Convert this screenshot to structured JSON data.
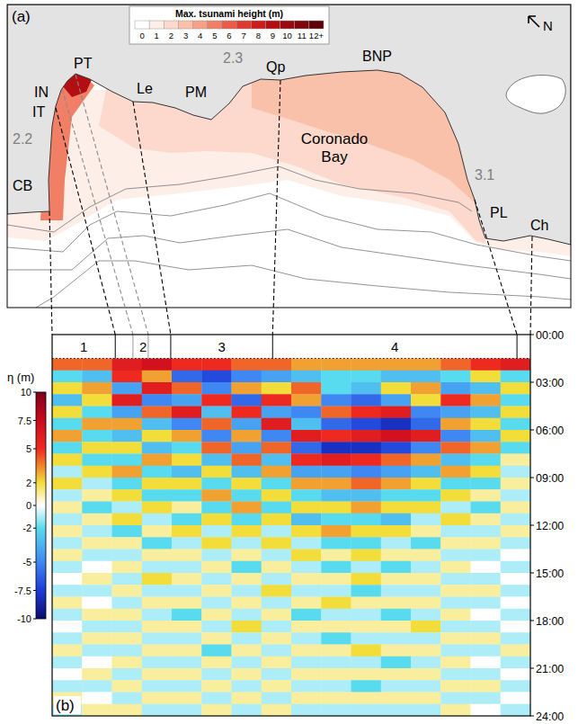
{
  "chart_data": [
    {
      "type": "map",
      "panel_label": "(a)",
      "north_label": "N",
      "colorbar": {
        "title": "Max. tsunami height (m)",
        "ticks": [
          0,
          1,
          2,
          3,
          4,
          5,
          6,
          7,
          8,
          9,
          10,
          11,
          {
            "value": 12,
            "label": "12+"
          }
        ],
        "colors": [
          "#ffffff",
          "#fdeee8",
          "#fcd9cc",
          "#f9c0aa",
          "#f6a088",
          "#f07f66",
          "#e95c48",
          "#de3a30",
          "#cc1c1e",
          "#b30e14",
          "#980a10",
          "#7e060c",
          "#5e0208"
        ]
      },
      "zones": [
        {
          "max_height": 1.5
        },
        {
          "max_height": 2.5
        },
        {
          "max_height": 3.5
        },
        {
          "max_height": 5
        },
        {
          "max_height": 9
        }
      ],
      "places": [
        {
          "label": "CB"
        },
        {
          "label": "IT"
        },
        {
          "label": "IN"
        },
        {
          "label": "PT"
        },
        {
          "label": "Le"
        },
        {
          "label": "PM"
        },
        {
          "label": "Qp"
        },
        {
          "label": "BNP"
        },
        {
          "label": "PL"
        },
        {
          "label": "Ch"
        },
        {
          "label": "2.2",
          "color": "#808080"
        },
        {
          "label": "2.3",
          "color": "#808080"
        },
        {
          "label": "3.1",
          "color": "#808080"
        },
        {
          "label": "Coronado Bay"
        }
      ]
    },
    {
      "type": "heatmap",
      "panel_label": "(b)",
      "tick_labels": "y",
      "xlim": [
        0,
        100
      ],
      "ylim": [
        0,
        24
      ],
      "yticks": [
        {
          "value": 0,
          "label": "00:00"
        },
        {
          "value": 3,
          "label": "03:00"
        },
        {
          "value": 6,
          "label": "06:00"
        },
        {
          "value": 9,
          "label": "09:00"
        },
        {
          "value": 12,
          "label": "12:00"
        },
        {
          "value": 15,
          "label": "15:00"
        },
        {
          "value": 18,
          "label": "18:00"
        },
        {
          "value": 21,
          "label": "21:00"
        },
        {
          "value": 24,
          "label": "24:00"
        }
      ],
      "segments": [
        {
          "label": "1",
          "start": 0,
          "end": 13.2
        },
        {
          "label": "2",
          "start": 13.2,
          "end": 24.8
        },
        {
          "label": "3",
          "start": 24.8,
          "end": 46.1
        },
        {
          "label": "4",
          "start": 46.1,
          "end": 97.2
        }
      ],
      "divisions": [
        16.9,
        20.1
      ],
      "colorbar": {
        "title": "η (m)",
        "range": [
          -10,
          10
        ],
        "ticks": [
          10,
          7.5,
          5,
          2,
          0,
          -2,
          -5,
          -7.5,
          -10
        ],
        "stops": [
          {
            "value": -10,
            "color": "#0b0b6e"
          },
          {
            "value": -7.5,
            "color": "#1c3bd8"
          },
          {
            "value": -5,
            "color": "#3f87f2"
          },
          {
            "value": -2,
            "color": "#58dbee"
          },
          {
            "value": 0,
            "color": "#ffffff"
          },
          {
            "value": 2,
            "color": "#f3dd3a"
          },
          {
            "value": 5,
            "color": "#ee2a20"
          },
          {
            "value": 7.5,
            "color": "#cc0a1e"
          },
          {
            "value": 10,
            "color": "#7d0318"
          }
        ]
      },
      "x_edges": [
        0,
        6.25,
        12.5,
        18.75,
        25,
        31.25,
        37.5,
        43.75,
        50,
        56.25,
        62.5,
        68.75,
        75,
        81.25,
        87.5,
        93.75,
        100
      ],
      "y_edges": [
        1.5,
        2.25,
        3,
        3.75,
        4.5,
        5.25,
        6,
        6.75,
        7.5,
        8.25,
        9,
        9.75,
        10.5,
        11.25,
        12,
        12.75,
        13.5,
        14.25,
        15,
        15.75,
        16.5,
        17.25,
        18,
        18.75,
        19.5,
        20.25,
        21,
        21.75,
        22.5,
        23.25,
        24
      ],
      "cells": [
        [
          4,
          4,
          6,
          7,
          5,
          5,
          4,
          4,
          3,
          3,
          3,
          3,
          3,
          4,
          5,
          6
        ],
        [
          -2,
          -3,
          5,
          3,
          -6,
          -7,
          -5,
          -4,
          -3,
          -2,
          -2,
          -3,
          -3,
          -2,
          2,
          -2
        ],
        [
          2,
          3,
          -4,
          6,
          4,
          -5,
          3,
          2,
          4,
          -2,
          -3,
          2,
          3,
          -4,
          -3,
          2
        ],
        [
          -3,
          2,
          6,
          -5,
          -4,
          5,
          -6,
          5,
          3,
          -5,
          -6,
          -4,
          2,
          5,
          3,
          -2
        ],
        [
          2,
          -2,
          -4,
          4,
          6,
          -3,
          5,
          -4,
          -5,
          4,
          5,
          6,
          -5,
          -4,
          -3,
          2
        ],
        [
          -2,
          3,
          3,
          -3,
          -5,
          4,
          -4,
          6,
          -3,
          -6,
          -7,
          -8,
          -6,
          3,
          2,
          -2
        ],
        [
          3,
          -2,
          -3,
          2,
          3,
          -5,
          3,
          -5,
          6,
          5,
          6,
          7,
          6,
          -5,
          -3,
          2
        ],
        [
          -2,
          2,
          2,
          -3,
          -2,
          4,
          -4,
          4,
          -6,
          -8,
          -8,
          -7,
          -5,
          4,
          3,
          -2
        ],
        [
          2,
          -2,
          -2,
          3,
          2,
          -3,
          4,
          -3,
          5,
          6,
          5,
          4,
          3,
          -3,
          -2,
          1
        ],
        [
          -1,
          2,
          3,
          -2,
          -3,
          2,
          -3,
          3,
          -4,
          -4,
          -5,
          -4,
          -3,
          3,
          2,
          -1
        ],
        [
          2,
          -1,
          -2,
          2,
          2,
          -2,
          2,
          -2,
          3,
          3,
          4,
          3,
          2,
          -2,
          -2,
          1
        ],
        [
          -1,
          1,
          2,
          -2,
          -2,
          3,
          -2,
          2,
          -2,
          -3,
          -3,
          -2,
          -2,
          2,
          1,
          -1
        ],
        [
          1,
          -2,
          -1,
          2,
          1,
          -2,
          3,
          -2,
          2,
          2,
          3,
          2,
          2,
          -1,
          -2,
          1
        ],
        [
          -1,
          1,
          2,
          -1,
          -2,
          2,
          -2,
          2,
          -3,
          -2,
          -2,
          -3,
          -1,
          2,
          1,
          -1
        ],
        [
          1,
          -1,
          -2,
          1,
          2,
          -1,
          2,
          -1,
          2,
          3,
          2,
          2,
          1,
          -1,
          -1,
          1
        ],
        [
          -1,
          1,
          1,
          -2,
          -1,
          2,
          -1,
          2,
          -1,
          -2,
          -2,
          -1,
          -2,
          1,
          1,
          -1
        ],
        [
          1,
          -1,
          -1,
          1,
          1,
          -1,
          1,
          -1,
          2,
          1,
          2,
          1,
          1,
          -1,
          -1,
          0
        ],
        [
          -1,
          0,
          1,
          -1,
          -1,
          1,
          -2,
          1,
          -1,
          -2,
          -1,
          -2,
          -1,
          1,
          0,
          -1
        ],
        [
          0,
          1,
          -1,
          2,
          1,
          -1,
          1,
          -1,
          1,
          1,
          2,
          1,
          1,
          -1,
          -1,
          0
        ],
        [
          -1,
          -1,
          1,
          -1,
          -1,
          1,
          -1,
          2,
          -1,
          -1,
          -2,
          -1,
          -1,
          1,
          1,
          -1
        ],
        [
          1,
          0,
          -1,
          1,
          1,
          -1,
          1,
          -1,
          1,
          2,
          1,
          1,
          1,
          -1,
          -1,
          0
        ],
        [
          -1,
          1,
          1,
          -1,
          -2,
          1,
          -1,
          1,
          -2,
          -1,
          -1,
          -2,
          -1,
          1,
          0,
          -1
        ],
        [
          0,
          -1,
          -1,
          1,
          1,
          -1,
          2,
          -1,
          1,
          1,
          1,
          1,
          2,
          -1,
          -1,
          0
        ],
        [
          -1,
          1,
          1,
          -1,
          -1,
          1,
          -1,
          1,
          -1,
          -2,
          -1,
          -1,
          -1,
          1,
          1,
          -1
        ],
        [
          1,
          -1,
          -1,
          1,
          1,
          -2,
          1,
          -1,
          1,
          1,
          2,
          1,
          1,
          -1,
          -1,
          1
        ],
        [
          -1,
          0,
          1,
          -1,
          -1,
          1,
          -1,
          1,
          -1,
          -1,
          -1,
          -2,
          -1,
          1,
          0,
          -1
        ],
        [
          0,
          1,
          -1,
          1,
          1,
          -1,
          1,
          -1,
          1,
          1,
          1,
          1,
          1,
          -1,
          -1,
          0
        ],
        [
          -1,
          -1,
          1,
          -1,
          -1,
          1,
          -1,
          1,
          -1,
          -1,
          -2,
          -1,
          -1,
          1,
          1,
          -1
        ],
        [
          1,
          0,
          -1,
          1,
          1,
          -1,
          1,
          -1,
          1,
          1,
          1,
          1,
          1,
          -1,
          -1,
          0
        ],
        [
          -1,
          1,
          1,
          -1,
          -1,
          1,
          -1,
          1,
          -1,
          -1,
          -1,
          -1,
          -1,
          1,
          0,
          -1
        ]
      ]
    }
  ]
}
